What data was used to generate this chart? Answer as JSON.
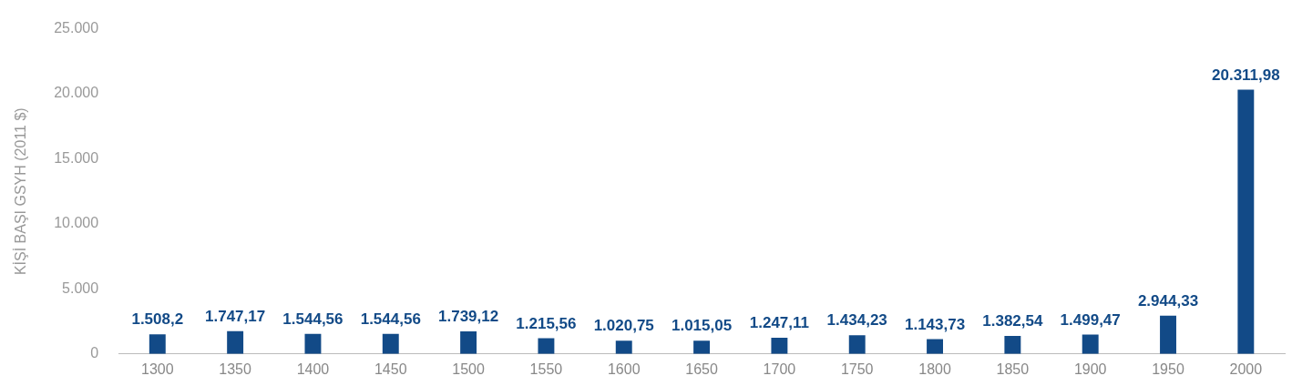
{
  "chart_data": {
    "type": "bar",
    "ylabel": "KİŞİ BAŞI GSYH (2011 $)",
    "categories": [
      "1300",
      "1350",
      "1400",
      "1450",
      "1500",
      "1550",
      "1600",
      "1650",
      "1700",
      "1750",
      "1800",
      "1850",
      "1900",
      "1950",
      "2000"
    ],
    "values": [
      1508.2,
      1747.17,
      1544.56,
      1544.56,
      1739.12,
      1215.56,
      1020.75,
      1015.05,
      1247.11,
      1434.23,
      1143.73,
      1382.54,
      1499.47,
      2944.33,
      20311.98
    ],
    "value_labels": [
      "1.508,2",
      "1.747,17",
      "1.544,56",
      "1.544,56",
      "1.739,12",
      "1.215,56",
      "1.020,75",
      "1.015,05",
      "1.247,11",
      "1.434,23",
      "1.143,73",
      "1.382,54",
      "1.499,47",
      "2.944,33",
      "20.311,98"
    ],
    "color": "#124a87",
    "ylim": [
      0,
      25000
    ],
    "yticks": [
      {
        "value": 0,
        "label": "0"
      },
      {
        "value": 5000,
        "label": "5.000"
      },
      {
        "value": 10000,
        "label": "10.000"
      },
      {
        "value": 15000,
        "label": "15.000"
      },
      {
        "value": 20000,
        "label": "20.000"
      },
      {
        "value": 25000,
        "label": "25.000"
      }
    ],
    "grid": false
  }
}
